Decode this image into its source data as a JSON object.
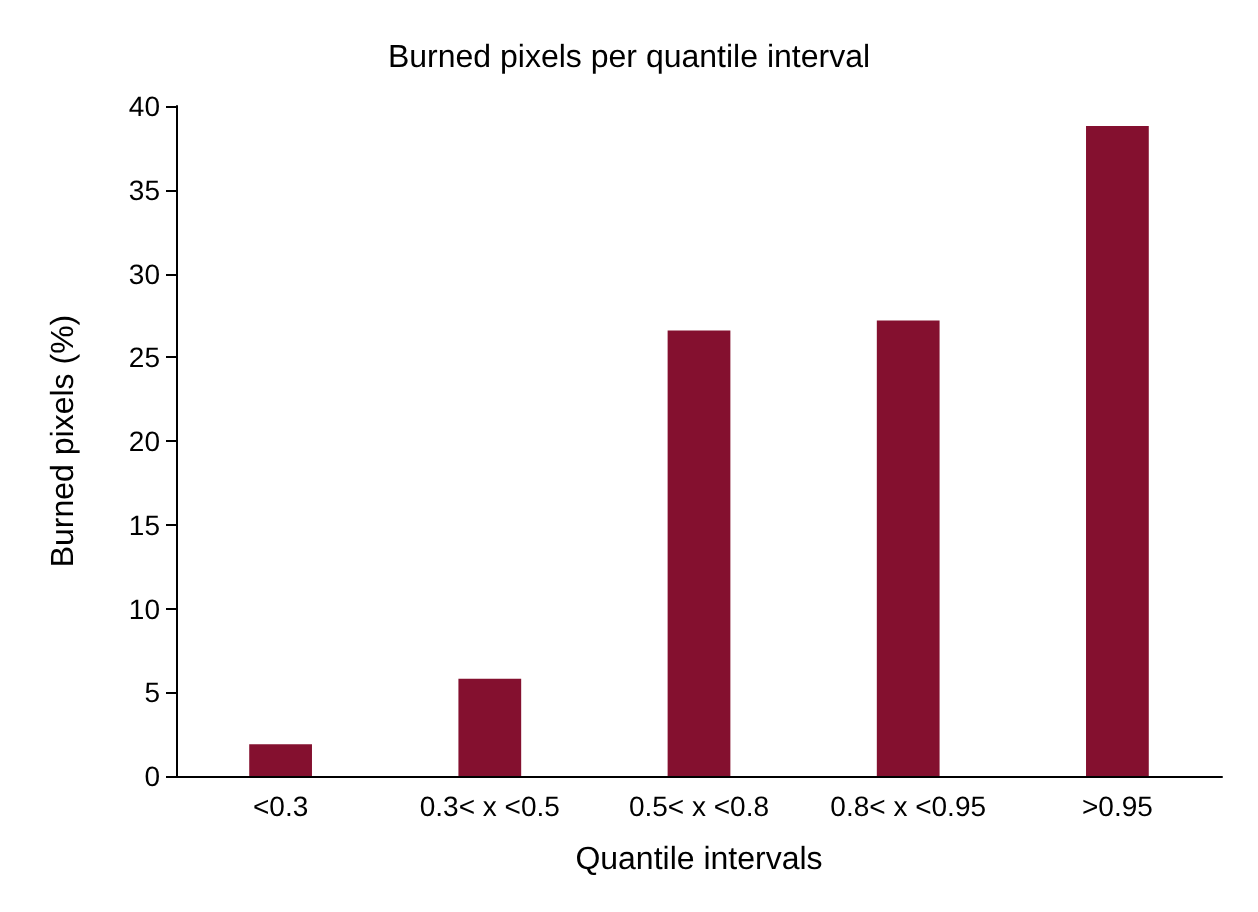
{
  "chart_data": {
    "type": "bar",
    "title": "Burned pixels per quantile interval",
    "xlabel": "Quantile intervals",
    "ylabel": "Burned pixels (%)",
    "categories": [
      "<0.3",
      "0.3< x <0.5",
      "0.5< x <0.8",
      "0.8< x <0.95",
      ">0.95"
    ],
    "values": [
      1.9,
      5.8,
      26.6,
      27.2,
      38.8
    ],
    "color": "#84102f",
    "ylim": [
      0,
      40
    ],
    "yticks": [
      0,
      5,
      10,
      15,
      20,
      25,
      30,
      35,
      40
    ],
    "grid": false
  }
}
